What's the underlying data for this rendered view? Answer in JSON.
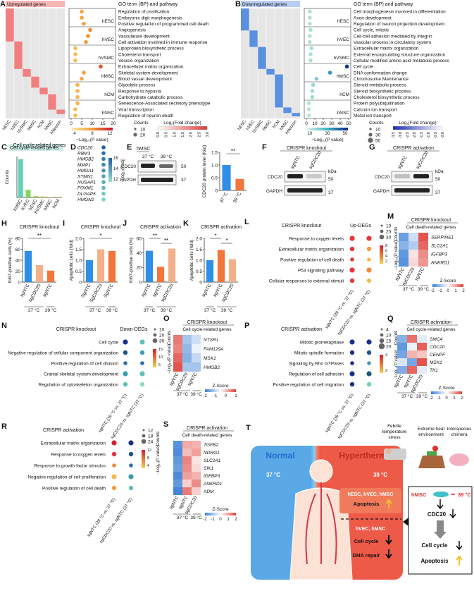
{
  "panels": {
    "A": {
      "label": "A",
      "left_title": "Upregulated genes",
      "right_title": "GO term (BP) and pathway",
      "samples": [
        "hESC",
        "hVEC",
        "hVSMC",
        "hMSC",
        "hCM",
        "hNSC",
        "hNeuron"
      ],
      "groups": [
        "hESC",
        "hVEC",
        "hVSMC",
        "hMSC",
        "hCM",
        "hNSC"
      ],
      "terms": [
        "Regulation of ossification",
        "Embryonic digit morphogenesis",
        "Positive regulation of programmed cell death",
        "Angiogenesis",
        "Vasculature development",
        "Cell activation involved in immune response",
        "Lipoprotein biosynthetic process",
        "Cholesterol transport",
        "Vesicle organization",
        "Extracellular matrix organization",
        "Skeletal system development",
        "Blood vessel development",
        "Glycolytic process",
        "Response to hypoxia",
        "Carbohydrate catabolic process",
        "Senescence-Associated secretory phenotype",
        "Viral transcription",
        "Regulation of neuron death"
      ],
      "pvalues": [
        5,
        5,
        6,
        9,
        8,
        7,
        2,
        2,
        2,
        14,
        6,
        5,
        3,
        3,
        3,
        3,
        2,
        2
      ],
      "xlim": [
        0,
        20
      ],
      "xticks": [
        0,
        5,
        10,
        15,
        20
      ],
      "x_label": "−Log₁₀(P value)",
      "p_ticks": [
        4,
        8,
        12
      ],
      "counts_title": "Counts",
      "counts": [
        10,
        20
      ],
      "fc_title": "Log₂(Fold change)",
      "fc_ticks": [
        {
          "value": 0,
          "label": "0.0"
        },
        0.5,
        {
          "value": 1,
          "label": "1.0"
        },
        1.5,
        {
          "value": 2,
          "label": "2.0"
        },
        2.5,
        {
          "value": 3,
          "label": "3.0"
        }
      ]
    },
    "B": {
      "label": "B",
      "left_title": "Downregulated genes",
      "right_title": "GO term (BP) and pathway",
      "samples": [
        "hESC",
        "hVEC",
        "hVSMC",
        "hMSC",
        "hCM",
        "hNSC",
        "hNeuron"
      ],
      "groups": [
        "hESC",
        "hVEC",
        "hVSMC",
        "hMSC",
        "hCM",
        "hNSC"
      ],
      "terms": [
        "Cell morphogenesis involved in differentiation",
        "Axon development",
        "Regulation of neuron projection development",
        "Cell cycle, mitotic",
        "Cell-cell adhesion mediated by integrin",
        "Vascular process in circulatory system",
        "Extracellular matrix organization",
        "External encapsulating structure organization",
        "Cellular modified amino acid metabolic process",
        "Cell cycle",
        "DNA conformation change",
        "Chromosome Maintenance",
        "Steroid metabolic process",
        "Steroid biosynthetic process",
        "Cholesterol biosynthetic process",
        "Protein polyubiquitination",
        "Calcium ion transport",
        "Metal ion transport"
      ],
      "pvalues": [
        4,
        4,
        4,
        5,
        4,
        4,
        6,
        5,
        5,
        48,
        28,
        12,
        8,
        7,
        7,
        3,
        3,
        3
      ],
      "xlim": [
        0,
        50
      ],
      "xticks": [
        0,
        10,
        20,
        30,
        40,
        50
      ],
      "x_label": "−Log₁₀(P value)",
      "p_ticks": [
        10,
        30,
        50
      ],
      "counts_title": "Counts",
      "counts": [
        10,
        30,
        50
      ],
      "fc_title": "Log₂(Fold change)",
      "fc_ticks": [
        -3.5,
        {
          "value": -3,
          "label": "-3.0"
        },
        -2.5,
        {
          "value": -2,
          "label": "-2.0"
        },
        -1.5,
        {
          "value": -1,
          "label": "-1.0"
        },
        -0.5,
        {
          "value": 0,
          "label": "0.0"
        }
      ]
    },
    "C": {
      "label": "C",
      "chart": {
        "type": "bar",
        "title": "Cell cycle-related genes",
        "y_label": "Counts",
        "categories": [
          "hMSC",
          "hVEC",
          "hESC",
          "hVSMC",
          "hNSC",
          "hCM"
        ],
        "values": [
          75,
          15,
          3,
          2,
          1,
          1
        ],
        "colors": [
          "#5fd3b5",
          "#86d35b",
          "#b6d84e",
          "#d9c94a",
          "#e9b04a",
          "#f09a52"
        ],
        "ylim": [
          0,
          80
        ]
      }
    },
    "D": {
      "label": "D",
      "genes": [
        "CDC20",
        "RBM3",
        "HMGB2",
        "MMP1",
        "HMGA1",
        "STMN1",
        "NUSAP1",
        "FOXM1",
        "DLGAP5",
        "HMGN2"
      ],
      "ticks": [
        12,
        14,
        16
      ],
      "color_label": "−Log₁₀(Padj)"
    },
    "E": {
      "label": "E",
      "cell": "hMSC",
      "lanes": [
        "37 °C",
        "39 °C"
      ],
      "proteins": [
        "CDC20",
        "GAPDH"
      ],
      "markers": [
        50,
        37
      ],
      "chart": {
        "type": "bar",
        "y_label": "CDC20 protein level (fold)",
        "categories": [
          "37 °C",
          "39 °C"
        ],
        "values": [
          1.0,
          0.45
        ],
        "colors": [
          "#2f8fe6",
          "#f2753a"
        ],
        "ylim": [
          0,
          1.5
        ],
        "yticks": [
          0,
          0.5,
          {
            "value": 1,
            "label": "1.0"
          },
          1.5
        ],
        "significance": [
          "**"
        ]
      }
    },
    "F": {
      "label": "F",
      "title": "CRISPR knockout",
      "lanes": [
        "sgNTC",
        "sgCDC20"
      ],
      "proteins": [
        "CDC20",
        "GAPDH"
      ],
      "unit": "kDa",
      "markers": [
        50,
        37
      ]
    },
    "G": {
      "label": "G",
      "title": "CRISPR activation",
      "lanes": [
        "sgNTC",
        "sgCDC20"
      ],
      "proteins": [
        "CDC20",
        "GAPDH"
      ],
      "unit": "kDa",
      "markers": [
        50,
        37
      ]
    },
    "H": {
      "label": "H",
      "chart": {
        "type": "bar",
        "title": "CRISPR knockout",
        "y_label": "Ki67-positive cells (%)",
        "categories": [
          "sgNTC",
          "sgCDC20",
          "sgNTC"
        ],
        "values": [
          57,
          31,
          21
        ],
        "colors": [
          "#2f8fe6",
          "#f4b08a",
          "#f2753a"
        ],
        "ylim": [
          0,
          80
        ],
        "yticks": [
          0,
          20,
          40,
          60,
          80
        ],
        "groups": [
          "37 °C",
          "39 °C"
        ],
        "significance": [
          "**"
        ]
      }
    },
    "I": {
      "label": "I",
      "chart": {
        "type": "bar",
        "title": "CRISPR knockout",
        "y_label": "Apoptotic cells (fold)",
        "categories": [
          "SgNTC",
          "SgCDC20",
          "SgNTC"
        ],
        "values": [
          1.0,
          1.5,
          1.42
        ],
        "colors": [
          "#2f8fe6",
          "#f4b08a",
          "#f2753a"
        ],
        "ylim": [
          0,
          2
        ],
        "yticks": [
          0,
          0.5,
          {
            "value": 1,
            "label": "1.0"
          },
          1.5,
          {
            "value": 2,
            "label": "2.0"
          }
        ],
        "groups": [
          "37 °C",
          "39 °C"
        ],
        "significance": [
          "*"
        ]
      }
    },
    "J": {
      "label": "J",
      "chart": {
        "type": "bar",
        "title": "CRISPR activation",
        "y_label": "Ki67-positive cells (%)",
        "categories": [
          "sgNTC",
          "sgNTC",
          "sgCDC20"
        ],
        "values": [
          43,
          21,
          46
        ],
        "colors": [
          "#2f8fe6",
          "#f2753a",
          "#f4b08a"
        ],
        "ylim": [
          0,
          60
        ],
        "yticks": [
          0,
          20,
          40,
          60
        ],
        "groups": [
          "37 °C",
          "39 °C"
        ],
        "significance": [
          "**",
          "**"
        ]
      }
    },
    "K": {
      "label": "K",
      "chart": {
        "type": "bar",
        "title": "CRISPR activation",
        "y_label": "Apoptotic cells (fold)",
        "categories": [
          "sgNTC",
          "sgNTC",
          "sgCDC20"
        ],
        "values": [
          1.0,
          1.47,
          1.05
        ],
        "colors": [
          "#2f8fe6",
          "#f2753a",
          "#f4b08a"
        ],
        "ylim": [
          0,
          2
        ],
        "yticks": [
          0,
          0.5,
          {
            "value": 1,
            "label": "1.0"
          },
          1.5,
          {
            "value": 2,
            "label": "2.0"
          }
        ],
        "groups": [
          "37 °C",
          "39 °C"
        ],
        "significance": [
          "*",
          "*"
        ]
      }
    },
    "L": {
      "label": "L",
      "title": "CRISPR knockout",
      "subtitle": "Up-DEGs",
      "terms": [
        "Response to oxygen levels",
        "Extracellular matrix organization",
        "Positive regulation of cell death",
        "P53 signaling pathway",
        "Cellular responses to external stimuli"
      ],
      "columns": [
        "sgNTC (39 °C vs. 37 °C)",
        "sgCDC20 vs. sgNTC (37 °C)"
      ],
      "counts_title": "Counts",
      "counts": [
        10,
        20,
        30
      ],
      "color_label": "−Log₁₀(P value)",
      "color_ticks": [
        2,
        4,
        6,
        8
      ]
    },
    "M": {
      "label": "M",
      "title": "CRISPR knockout",
      "subtitle": "Cell death-related genes",
      "genes": [
        "SERPINE1",
        "SLC2A1",
        "IGFBP3",
        "ANKRD1"
      ],
      "columns": [
        "sgNTC",
        "sgCDC20",
        "sgNTC"
      ],
      "groups": [
        "37 °C",
        "39 °C"
      ],
      "scale_title": "Z-Score",
      "ticks": [
        -2,
        -1,
        0,
        1,
        2
      ]
    },
    "N": {
      "label": "N",
      "title": "CRISPR knockout",
      "subtitle": "Down-DEGs",
      "terms": [
        "Cell cycle",
        "Negative regulation of cellular component organization",
        "Positive regulation of cell division",
        "Cranial skeletal system development",
        "Regulation of cytoskeleton organization"
      ],
      "columns": [
        "sgNTC (39 °C vs. 37 °C)",
        "sgCDC20 vs. sgNTC (37 °C)"
      ],
      "counts_title": "Counts",
      "counts": [
        10,
        20,
        30
      ],
      "color_label": "−Log₁₀(P value)",
      "color_ticks": [
        5,
        10,
        15
      ]
    },
    "O": {
      "label": "O",
      "title": "CRISPR knockout",
      "subtitle": "Cell cycle-related genes",
      "genes": [
        "NTSR1",
        "FAM129A",
        "MSX1",
        "HMGB2"
      ],
      "columns": [
        "sgNTC",
        "sgCDC20",
        "sgNTC"
      ],
      "groups": [
        "37 °C",
        "39 °C"
      ],
      "scale_title": "Z-Score",
      "ticks": [
        -2,
        -1,
        0,
        1
      ]
    },
    "P": {
      "label": "P",
      "title": "CRISPR activation",
      "terms": [
        "Mitotic prometaphase",
        "Mitotic spindle formation",
        "Signaling by Rho GTPases",
        "Regulation of cell adhesion",
        "Positive regulation of cell migration"
      ],
      "columns": [
        "sgNTC (39 °C vs. 37 °C)",
        "sgCDC20 vs. sgNTC (37 °C)"
      ],
      "counts_title": "Counts",
      "counts": [
        4,
        10,
        15,
        20
      ],
      "color_label": "−Log₁₀(P value)",
      "color_ticks": [
        2,
        4
      ]
    },
    "Q": {
      "label": "Q",
      "title": "CRISPR activation",
      "subtitle": "Cell cycle-related genes",
      "genes": [
        "SMC4",
        "CDC20",
        "CENPF",
        "MSX1",
        "TK1"
      ],
      "columns": [
        "sgNTC",
        "sgNTC",
        "sgCDC20"
      ],
      "groups": [
        "37 °C",
        "39 °C"
      ],
      "scale_title": "Z-Score",
      "ticks": [
        -2,
        -1,
        0,
        1,
        2
      ]
    },
    "R": {
      "label": "R",
      "title": "CRISPR activation",
      "terms": [
        "Extracellular matrix organization",
        "Response to oxygen levels",
        "Response to growth factor stimulus",
        "Negative regulation of cell proliferation",
        "Positive regulation of cell death"
      ],
      "columns": [
        "sgNTC (39 °C vs. 37 °C)",
        "sgCDC20 vs. sgNTC (37 °C)"
      ],
      "counts_title": "Counts",
      "counts": [
        12,
        18,
        24
      ],
      "color_label": "−Log₁₀(P value)",
      "color_ticks": [
        4,
        8,
        12
      ]
    },
    "S": {
      "label": "S",
      "title": "CRISPR activation",
      "subtitle": "Cell death-related genes",
      "genes": [
        "TGFB2",
        "NDRG1",
        "SLC2A1",
        "SIK1",
        "IGFBP3",
        "ANKRD1",
        "ADM"
      ],
      "columns": [
        "sgNTC",
        "sgNTC",
        "sgCDC20"
      ],
      "groups": [
        "37 °C",
        "39 °C"
      ],
      "scale_title": "Z-Score",
      "ticks": [
        -2,
        -1,
        0,
        1,
        2
      ]
    },
    "T": {
      "label": "T",
      "normal": "Normal",
      "hyperthermia": "Hyperthermia",
      "normal_temp": "37 °C",
      "hyper_temp": "39 °C",
      "effect1_cells": "hESC, hVEC, hMSC",
      "effect1": "Apoptosis",
      "effect2_cells": "hVEC, hMSC",
      "effect2a": "Cell cycle",
      "effect2b": "DNA repair",
      "conditions": [
        [
          "Febrile",
          "temperature",
          "stress"
        ],
        [
          "Extreme heat",
          "environment"
        ],
        [
          "Interspecies",
          "chimera"
        ]
      ],
      "box_cell": "hMSC",
      "box_temp": "39 °C",
      "box_gene": "CDC20",
      "box_out1": "Cell cycle",
      "box_out2": "Apoptosis"
    }
  }
}
